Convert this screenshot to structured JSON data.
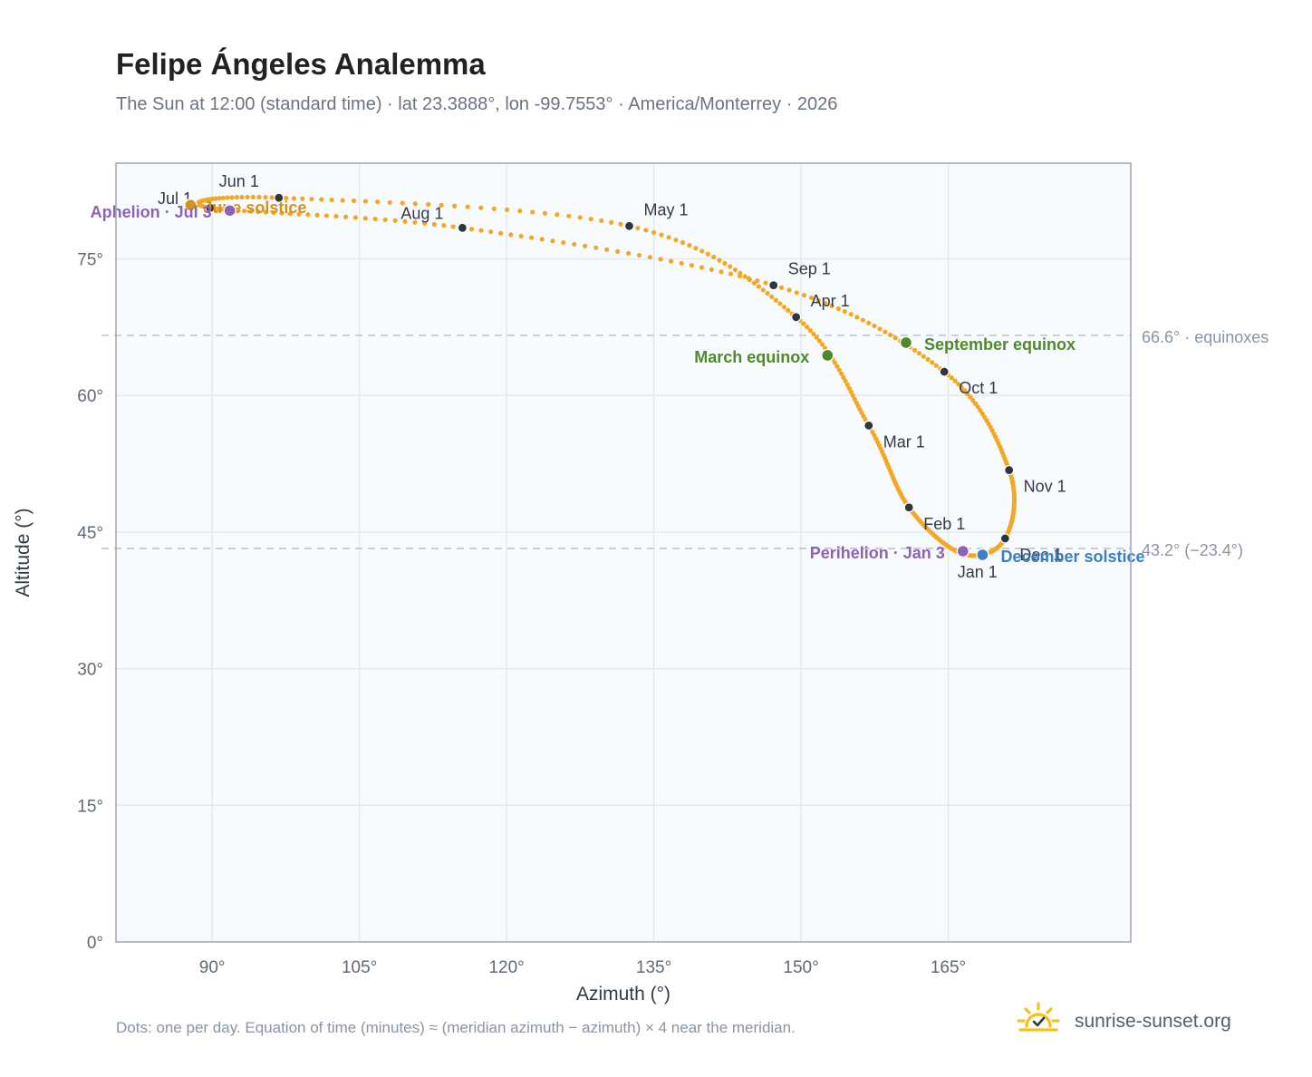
{
  "title": "Felipe Ángeles Analemma",
  "subtitle": "The Sun at 12:00 (standard time) · lat 23.3888°, lon -99.7553° · America/Monterrey · 2026",
  "footnote": "Dots: one per day. Equation of time (minutes) ≈ (meridian azimuth − azimuth) × 4 near the meridian.",
  "brand": {
    "name": "sunrise-sunset.org",
    "logo_icon": "sun-logo-icon"
  },
  "colors": {
    "curve": "#f5a623",
    "month_marker": "#2f3640",
    "equinox": "#4e8a2b",
    "june_solstice": "#d4921a",
    "december_solstice": "#3b7ec4",
    "apsis": "#8e62b5",
    "plot_bg": "#f8fbfe",
    "grid": "#e4e9f0",
    "reference_line": "#b9c3cf"
  },
  "chart_data": {
    "type": "scatter",
    "xlabel": "Azimuth (°)",
    "ylabel": "Altitude (°)",
    "xlim": [
      80.2,
      183.6
    ],
    "ylim": [
      0,
      85.5
    ],
    "x_ticks": [
      {
        "value": 90,
        "label": "90°"
      },
      {
        "value": 105,
        "label": "105°"
      },
      {
        "value": 120,
        "label": "120°"
      },
      {
        "value": 135,
        "label": "135°"
      },
      {
        "value": 150,
        "label": "150°"
      },
      {
        "value": 165,
        "label": "165°"
      }
    ],
    "y_ticks": [
      {
        "value": 0,
        "label": "0°"
      },
      {
        "value": 15,
        "label": "15°"
      },
      {
        "value": 30,
        "label": "30°"
      },
      {
        "value": 45,
        "label": "45°"
      },
      {
        "value": 60,
        "label": "60°"
      },
      {
        "value": 75,
        "label": "75°"
      }
    ],
    "grid": true,
    "reference_lines": [
      {
        "y": 66.6,
        "label": "66.6° · equinoxes"
      },
      {
        "y": 43.2,
        "label": "43.2° (−23.4°)"
      }
    ],
    "month_markers": [
      {
        "label": "Jan 1",
        "az": 166.5,
        "alt": 42.6
      },
      {
        "label": "Feb 1",
        "az": 161.0,
        "alt": 47.7
      },
      {
        "label": "Mar 1",
        "az": 156.9,
        "alt": 56.7
      },
      {
        "label": "Apr 1",
        "az": 149.5,
        "alt": 68.6
      },
      {
        "label": "May 1",
        "az": 132.5,
        "alt": 78.6
      },
      {
        "label": "Jun 1",
        "az": 96.8,
        "alt": 81.7
      },
      {
        "label": "Jul 1",
        "az": 89.8,
        "alt": 80.6
      },
      {
        "label": "Aug 1",
        "az": 115.5,
        "alt": 78.4
      },
      {
        "label": "Sep 1",
        "az": 147.2,
        "alt": 72.1
      },
      {
        "label": "Oct 1",
        "az": 164.6,
        "alt": 62.6
      },
      {
        "label": "Nov 1",
        "az": 171.2,
        "alt": 51.8
      },
      {
        "label": "Dec 1",
        "az": 170.8,
        "alt": 44.3
      }
    ],
    "events": [
      {
        "label": "March equinox",
        "az": 152.7,
        "alt": 64.4,
        "kind": "equinox"
      },
      {
        "label": "September equinox",
        "az": 160.7,
        "alt": 65.8,
        "kind": "equinox"
      },
      {
        "label": "June solstice",
        "az": 87.8,
        "alt": 80.9,
        "kind": "june_solstice"
      },
      {
        "label": "December solstice",
        "az": 168.5,
        "alt": 42.5,
        "kind": "december_solstice"
      },
      {
        "label": "Aphelion · Jul 3",
        "az": 91.8,
        "alt": 80.3,
        "kind": "apsis"
      },
      {
        "label": "Perihelion · Jan 3",
        "az": 166.5,
        "alt": 42.9,
        "kind": "apsis"
      }
    ]
  }
}
